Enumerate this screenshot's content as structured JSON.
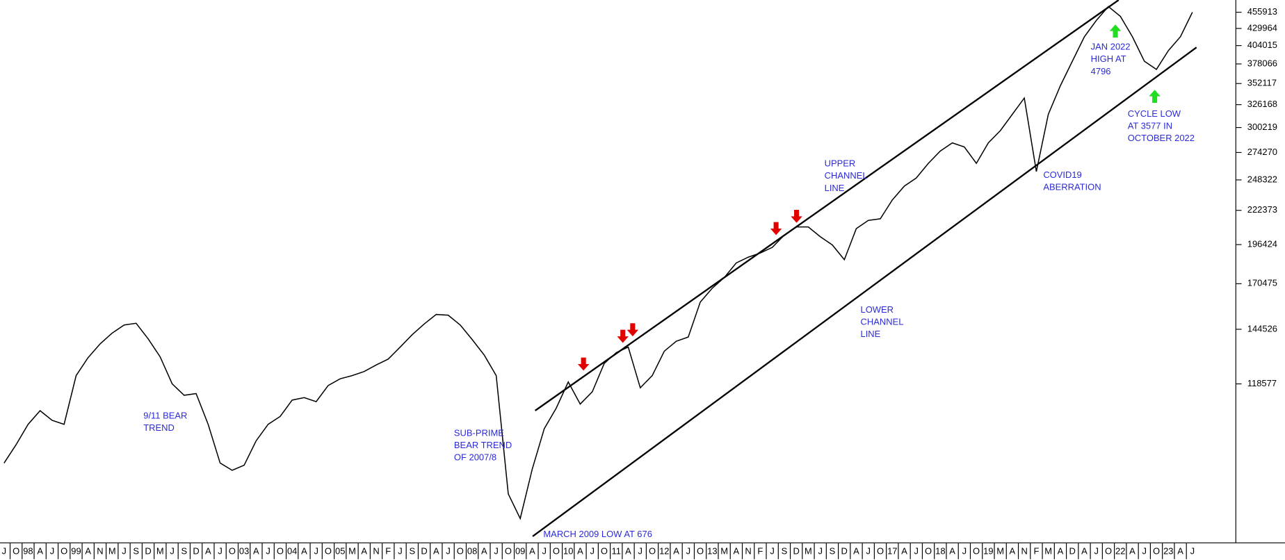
{
  "chart_data": {
    "type": "line",
    "log_scale": true,
    "color": "#000000",
    "annotation_color": "#2a2ad8",
    "categories": [
      "J",
      "O",
      "98",
      "A",
      "J",
      "O",
      "99",
      "A",
      "N",
      "M",
      "J",
      "S",
      "D",
      "M",
      "J",
      "S",
      "D",
      "A",
      "J",
      "O",
      "03",
      "A",
      "J",
      "O",
      "04",
      "A",
      "J",
      "O",
      "05",
      "M",
      "A",
      "N",
      "F",
      "J",
      "S",
      "D",
      "A",
      "J",
      "O",
      "08",
      "A",
      "J",
      "O",
      "09",
      "A",
      "J",
      "O",
      "10",
      "A",
      "J",
      "O",
      "11",
      "A",
      "J",
      "O",
      "12",
      "A",
      "J",
      "O",
      "13",
      "M",
      "A",
      "N",
      "F",
      "J",
      "S",
      "D",
      "M",
      "J",
      "S",
      "D",
      "A",
      "J",
      "O",
      "17",
      "A",
      "J",
      "O",
      "18",
      "A",
      "J",
      "O",
      "19",
      "M",
      "A",
      "N",
      "F",
      "M",
      "A",
      "D",
      "A",
      "J",
      "O",
      "22",
      "A",
      "J",
      "O",
      "23",
      "A",
      "J"
    ],
    "series": [
      {
        "values": [
          89000,
          95100,
          102400,
          107600,
          103900,
          102400,
          122200,
          130400,
          137100,
          142500,
          146800,
          147700,
          139600,
          130800,
          118600,
          113800,
          114500,
          102400,
          89000,
          86700,
          88300,
          96500,
          102400,
          105400,
          111800,
          112800,
          111200,
          117900,
          120800,
          122200,
          124000,
          127000,
          129700,
          135500,
          141700,
          147300,
          152500,
          152100,
          146800,
          139200,
          131600,
          122200,
          79600,
          72800,
          87000,
          100800,
          108600,
          119400,
          110200,
          115200,
          127700,
          132800,
          135500,
          116900,
          122200,
          133500,
          138400,
          140500,
          159500,
          167700,
          174300,
          183800,
          187700,
          190500,
          194500,
          203300,
          209400,
          209400,
          202100,
          196200,
          186000,
          208200,
          214400,
          215700,
          230900,
          242800,
          250100,
          263700,
          275700,
          284000,
          279800,
          263700,
          284000,
          296900,
          315000,
          334100,
          256000,
          315000,
          349300,
          381800,
          417200,
          442600,
          465400,
          449200,
          417200,
          381800,
          370600,
          396700,
          417200,
          455900
        ]
      }
    ],
    "ylim": [
      66650,
      476600
    ],
    "yticks": [
      455913,
      429964,
      404015,
      378066,
      352117,
      326168,
      300219,
      274270,
      248322,
      222373,
      196424,
      170475,
      144526,
      118577
    ],
    "annotations": [
      {
        "lines": [
          "9/11 BEAR",
          "TREND"
        ]
      },
      {
        "lines": [
          "SUB-PRIME",
          "BEAR TREND",
          "OF 2007/8"
        ]
      },
      {
        "lines": [
          "MARCH 2009 LOW AT 676"
        ]
      },
      {
        "lines": [
          "UPPER",
          "CHANNEL",
          "LINE"
        ]
      },
      {
        "lines": [
          "LOWER",
          "CHANNEL",
          "LINE"
        ]
      },
      {
        "lines": [
          "COVID19",
          "ABERRATION"
        ]
      },
      {
        "lines": [
          "JAN 2022",
          "HIGH AT",
          "4796"
        ]
      },
      {
        "lines": [
          "CYCLE LOW",
          "AT 3577 IN",
          "OCTOBER 2022"
        ]
      }
    ]
  }
}
